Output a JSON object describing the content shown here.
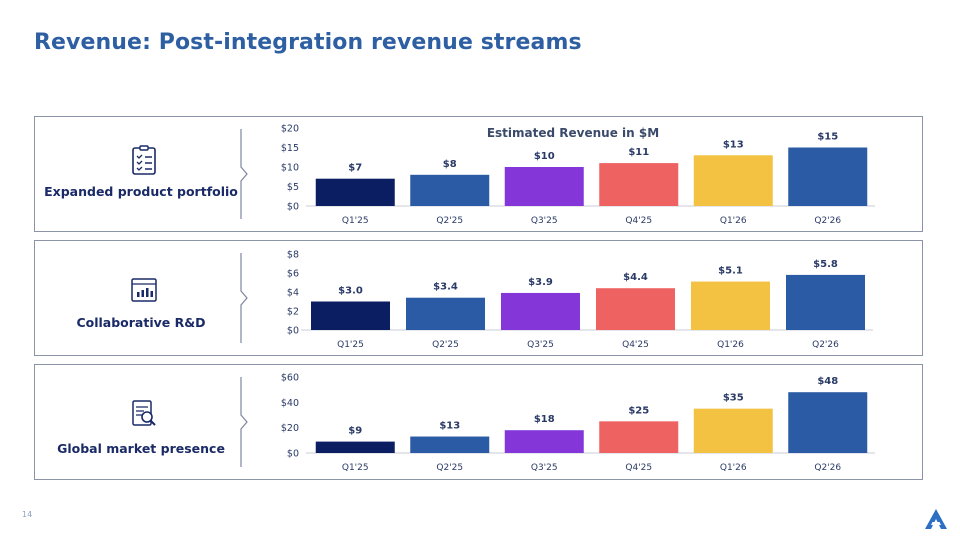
{
  "header": {
    "title": "Revenue: Post-integration revenue streams"
  },
  "footer": {
    "page_number": "14"
  },
  "colors": {
    "title": "#2e5fa3",
    "bars": [
      "#0c1e62",
      "#2c5ba6",
      "#8436d8",
      "#ee6262",
      "#f3c242",
      "#2c5ba6"
    ]
  },
  "panels": [
    {
      "label": "Expanded product portfolio",
      "icon": "checklist-icon"
    },
    {
      "label": "Collaborative R&D",
      "icon": "analytics-dashboard-icon"
    },
    {
      "label": "Global market presence",
      "icon": "document-search-icon"
    }
  ],
  "chart_data": [
    {
      "type": "bar",
      "title": "Estimated Revenue in $M",
      "categories": [
        "Q1'25",
        "Q2'25",
        "Q3'25",
        "Q4'25",
        "Q1'26",
        "Q2'26"
      ],
      "values": [
        7,
        8,
        10,
        11,
        13,
        15
      ],
      "data_labels": [
        "$7",
        "$8",
        "$10",
        "$11",
        "$13",
        "$15"
      ],
      "ylim": [
        0,
        20
      ],
      "yticks": [
        "$0",
        "$5",
        "$10",
        "$15",
        "$20"
      ],
      "grid": false
    },
    {
      "type": "bar",
      "title": "",
      "categories": [
        "Q1'25",
        "Q2'25",
        "Q3'25",
        "Q4'25",
        "Q1'26",
        "Q2'26"
      ],
      "values": [
        3.0,
        3.4,
        3.9,
        4.4,
        5.1,
        5.8
      ],
      "data_labels": [
        "$3.0",
        "$3.4",
        "$3.9",
        "$4.4",
        "$5.1",
        "$5.8"
      ],
      "ylim": [
        0,
        8
      ],
      "yticks": [
        "$0",
        "$2",
        "$4",
        "$6",
        "$8"
      ],
      "grid": false
    },
    {
      "type": "bar",
      "title": "",
      "categories": [
        "Q1'25",
        "Q2'25",
        "Q3'25",
        "Q4'25",
        "Q1'26",
        "Q2'26"
      ],
      "values": [
        9,
        13,
        18,
        25,
        35,
        48
      ],
      "data_labels": [
        "$9",
        "$13",
        "$18",
        "$25",
        "$35",
        "$48"
      ],
      "ylim": [
        0,
        60
      ],
      "yticks": [
        "$0",
        "$20",
        "$40",
        "$60"
      ],
      "grid": false
    }
  ]
}
